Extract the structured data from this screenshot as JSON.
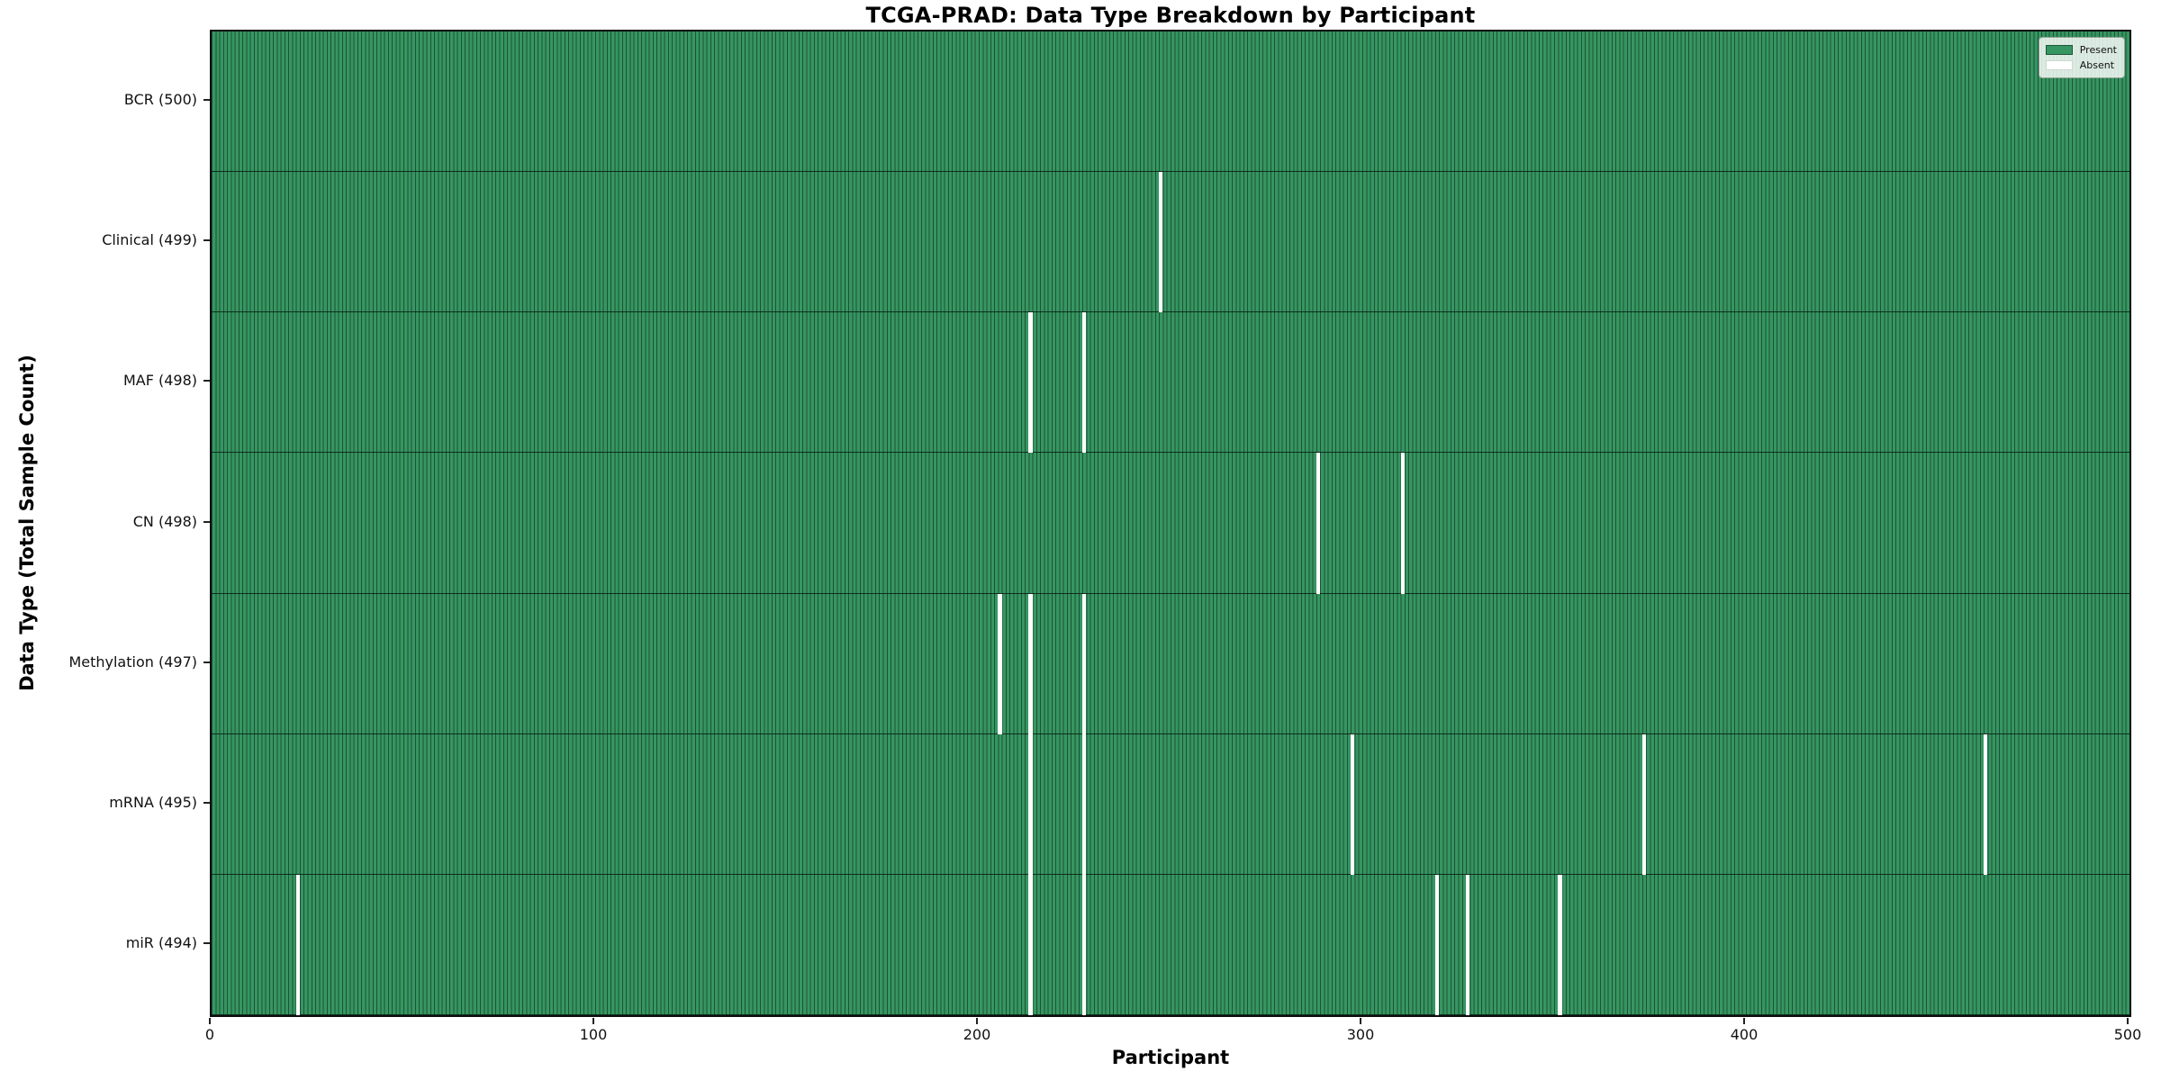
{
  "chart_data": {
    "type": "heatmap",
    "title": "TCGA-PRAD: Data Type Breakdown by Participant",
    "xlabel": "Participant",
    "ylabel": "Data Type (Total Sample Count)",
    "x_range": [
      0,
      500
    ],
    "x_ticks": [
      0,
      100,
      200,
      300,
      400,
      500
    ],
    "n_participants": 500,
    "grid": false,
    "legend": {
      "position": "upper right",
      "entries": [
        {
          "label": "Present",
          "color": "#369661"
        },
        {
          "label": "Absent",
          "color": "#ffffff"
        }
      ]
    },
    "colors": {
      "present_fill": "#369661",
      "present_edge": "#1d5136",
      "absent_fill": "#ffffff",
      "row_separator": "#12301f"
    },
    "rows": [
      {
        "label": "BCR (500)",
        "data_type": "BCR",
        "total_samples": 500,
        "absent_participants": []
      },
      {
        "label": "Clinical (499)",
        "data_type": "Clinical",
        "total_samples": 499,
        "absent_participants": [
          247
        ]
      },
      {
        "label": "MAF (498)",
        "data_type": "MAF",
        "total_samples": 498,
        "absent_participants": [
          213,
          227
        ]
      },
      {
        "label": "CN (498)",
        "data_type": "CN",
        "total_samples": 498,
        "absent_participants": [
          288,
          310
        ]
      },
      {
        "label": "Methylation (497)",
        "data_type": "Methylation",
        "total_samples": 497,
        "absent_participants": [
          205,
          213,
          227
        ]
      },
      {
        "label": "mRNA (495)",
        "data_type": "mRNA",
        "total_samples": 495,
        "absent_participants": [
          213,
          227,
          297,
          373,
          462
        ]
      },
      {
        "label": "miR (494)",
        "data_type": "miR",
        "total_samples": 494,
        "absent_participants": [
          22,
          213,
          227,
          319,
          327,
          351
        ]
      }
    ]
  }
}
